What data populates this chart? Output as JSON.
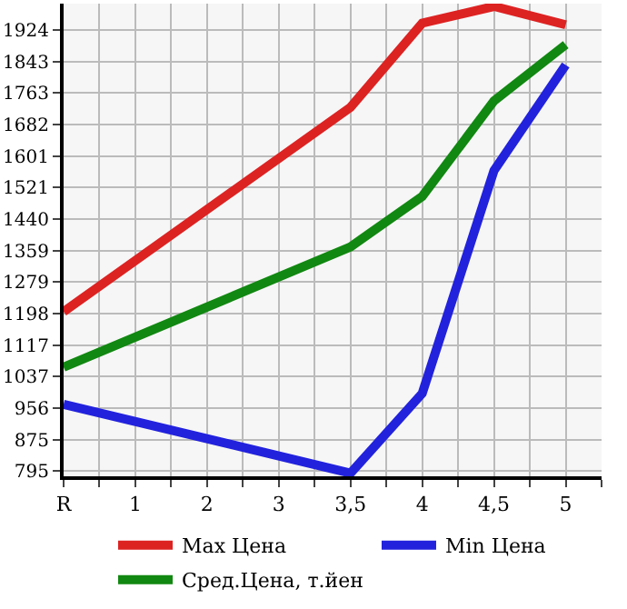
{
  "chart_data": {
    "type": "line",
    "categories": [
      "R",
      "1",
      "2",
      "3",
      "3,5",
      "4",
      "4,5",
      "5"
    ],
    "series": [
      {
        "name": "Max Цена",
        "color": "#dd2222",
        "values": [
          1203,
          null,
          null,
          null,
          1726,
          1941,
          1984,
          1937
        ]
      },
      {
        "name": "Min Цена",
        "color": "#2222dd",
        "values": [
          966,
          null,
          null,
          null,
          790,
          994,
          1564,
          1834
        ]
      },
      {
        "name": "Сред.Цена, т.йен",
        "color": "#118811",
        "values": [
          1061,
          null,
          null,
          null,
          1369,
          1498,
          1742,
          1886
        ]
      }
    ],
    "ylim": [
      782,
      1991
    ],
    "yticks": [
      795,
      875,
      956,
      1037,
      1117,
      1198,
      1279,
      1359,
      1440,
      1521,
      1601,
      1682,
      1763,
      1843,
      1924
    ],
    "grid": true,
    "legend": "bottom",
    "marker": "none",
    "line_style": "solid"
  }
}
